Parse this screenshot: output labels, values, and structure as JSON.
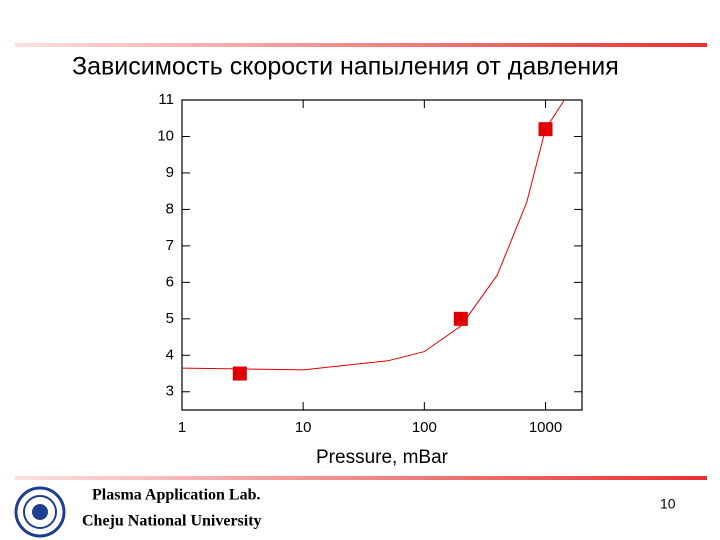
{
  "slide": {
    "title": "Зависимость скорости напыления от давления",
    "page_number": 10
  },
  "footer": {
    "lab": "Plasma Application Lab.",
    "university": "Cheju National University"
  },
  "chart_data": {
    "type": "scatter",
    "xlabel": "Pressure, mBar",
    "xscale": "log",
    "xlim": [
      1,
      2000
    ],
    "xticks": [
      1,
      10,
      100,
      1000
    ],
    "ylim": [
      2.5,
      11
    ],
    "yticks": [
      3,
      4,
      5,
      6,
      7,
      8,
      9,
      10,
      11
    ],
    "series": [
      {
        "color": "#e00000",
        "marker": "square",
        "x": [
          3,
          200,
          1000
        ],
        "values": [
          3.5,
          5,
          10.2
        ]
      }
    ],
    "fit": {
      "color": "#e00000",
      "x": [
        1,
        10,
        50,
        100,
        200,
        400,
        700,
        1000,
        1430
      ],
      "values": [
        3.65,
        3.6,
        3.85,
        4.1,
        4.8,
        6.2,
        8.2,
        10.2,
        11
      ]
    }
  }
}
